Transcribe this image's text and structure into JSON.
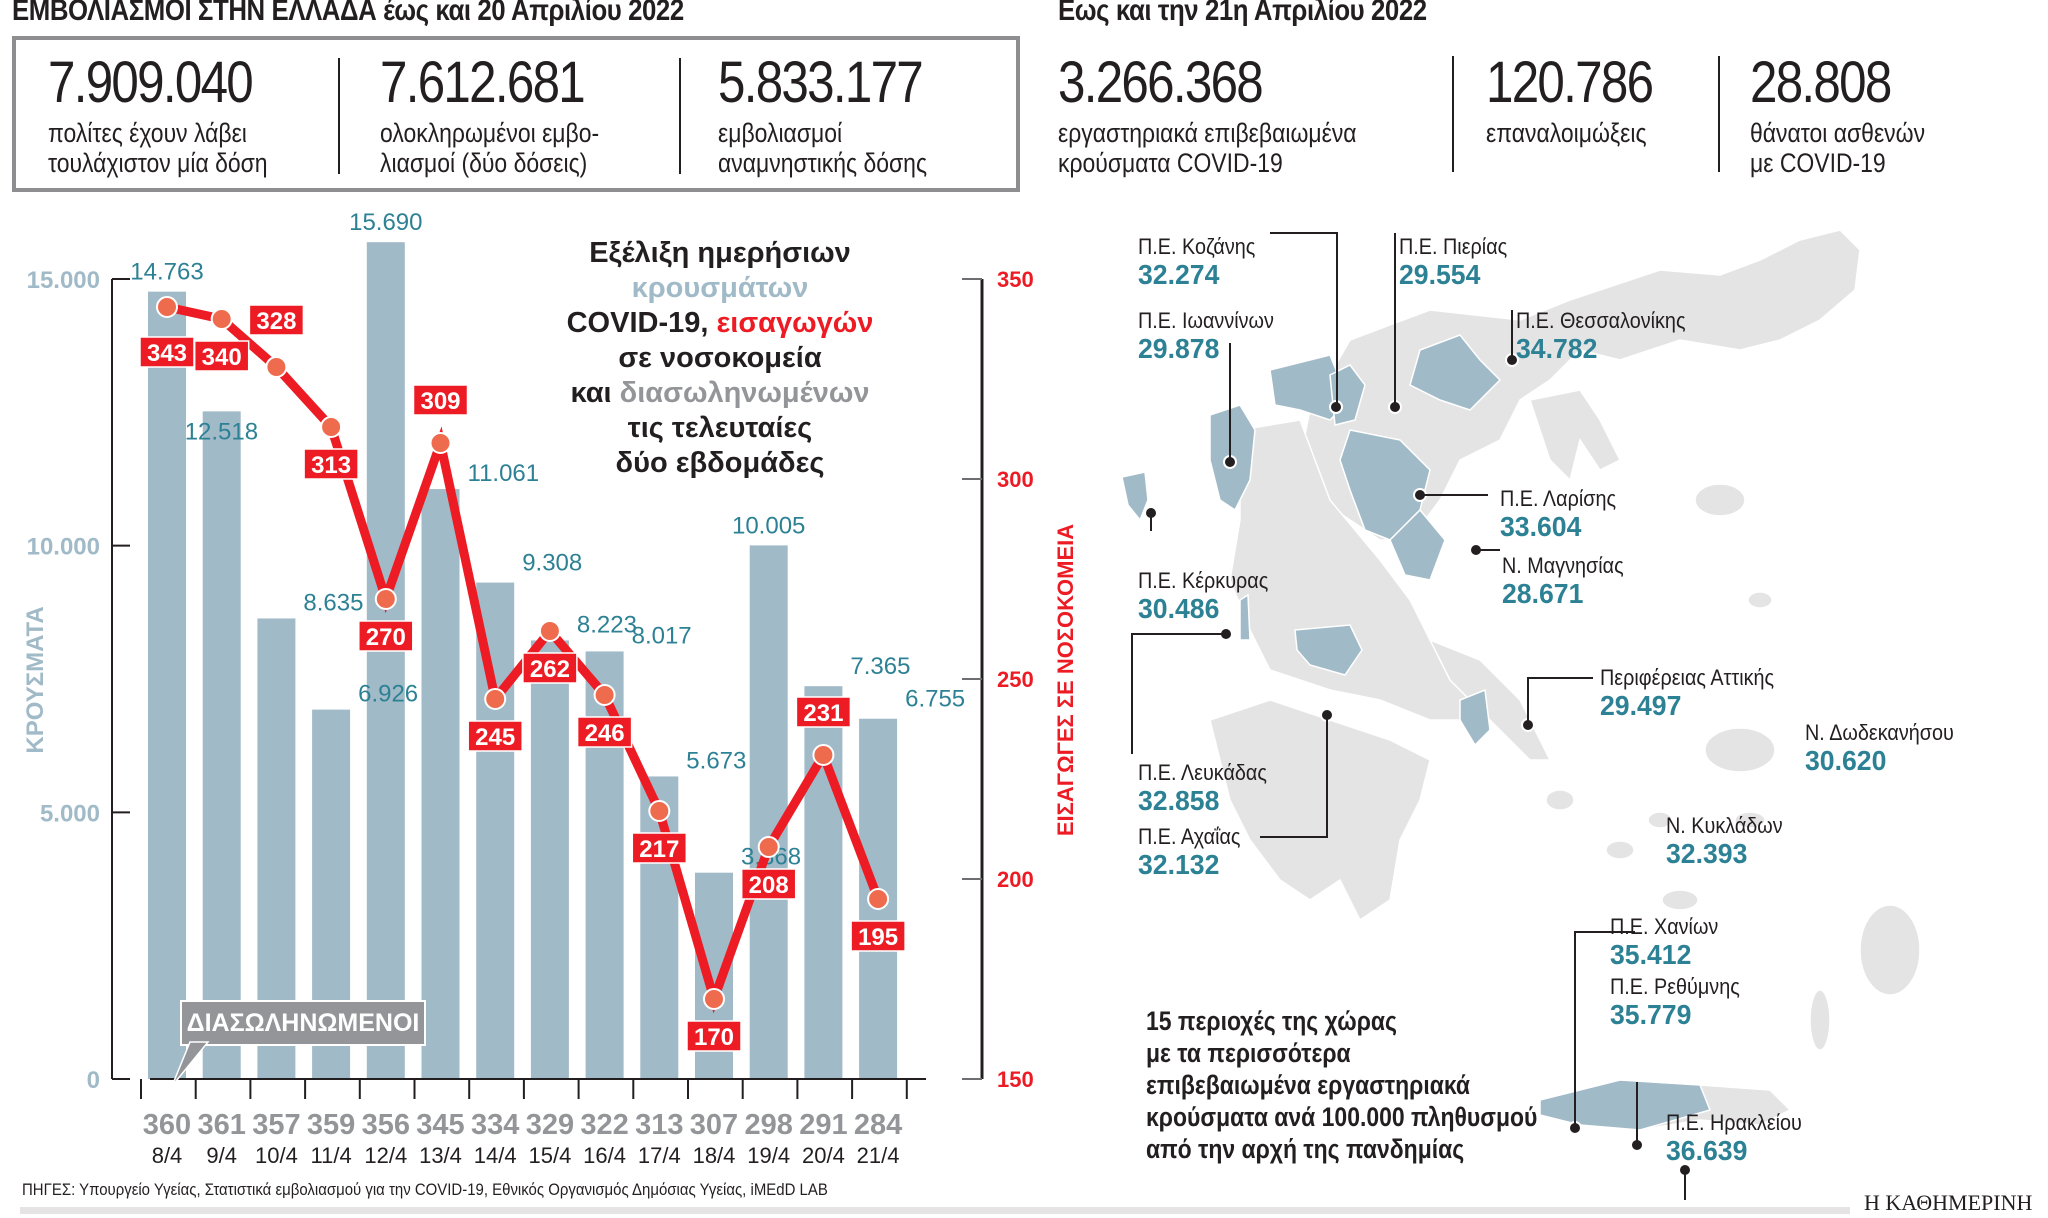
{
  "header": {
    "left_title": "ΕΜΒΟΛΙΑΣΜΟΙ ΣΤΗΝ ΕΛΛΑΔΑ",
    "left_title_suffix": "έως και 20 Απριλίου 2022",
    "right_title": "Εως και την 21η Απριλίου 2022"
  },
  "vaccination_stats": [
    {
      "value": "7.909.040",
      "label_line1": "πολίτες έχουν λάβει",
      "label_line2": "τουλάχιστον μία δόση"
    },
    {
      "value": "7.612.681",
      "label_line1": "ολοκληρωμένοι εμβο-",
      "label_line2": "λιασμοί (δύο δόσεις)"
    },
    {
      "value": "5.833.177",
      "label_line1": "εμβολιασμοί",
      "label_line2": "αναμνηστικής δόσης"
    }
  ],
  "covid_stats": [
    {
      "value": "3.266.368",
      "label_line1": "εργαστηριακά επιβεβαιωμένα",
      "label_line2": "κρούσματα COVID-19"
    },
    {
      "value": "120.786",
      "label_line1": "επαναλοιμώξεις",
      "label_line2": ""
    },
    {
      "value": "28.808",
      "label_line1": "θάνατοι ασθενών",
      "label_line2": "με COVID-19"
    }
  ],
  "chart_title": {
    "line1": "Εξέλιξη ημερήσιων",
    "line2_cases": "κρουσμάτων",
    "line3_prefix": "COVID-19,",
    "line3_admissions": "εισαγωγών",
    "line4": "σε νοσοκομεία",
    "line5_prefix": "και",
    "line5_intubated": "διασωληνωμένων",
    "line6": "τις τελευταίες",
    "line7": "δύο εβδομάδες"
  },
  "intubated_label": "ΔΙΑΣΩΛΗΝΩΜΕΝΟΙ",
  "colors": {
    "bars": "#a1bac8",
    "case_labels": "#2d8194",
    "admissions_line": "#ed1c24",
    "admissions_dot": "#ef6b4e",
    "intubated_text": "#939598",
    "left_axis_text": "#a1bac8",
    "right_axis_text": "#ed1c24"
  },
  "chart_data": {
    "type": "bar",
    "title": "Εξέλιξη ημερήσιων κρουσμάτων COVID-19, εισαγωγών σε νοσοκομεία και διασωληνωμένων τις τελευταίες δύο εβδομάδες",
    "categories": [
      "8/4",
      "9/4",
      "10/4",
      "11/4",
      "12/4",
      "13/4",
      "14/4",
      "15/4",
      "16/4",
      "17/4",
      "18/4",
      "19/4",
      "20/4",
      "21/4"
    ],
    "series": [
      {
        "name": "Κρούσματα",
        "type": "bar",
        "axis": "left",
        "values": [
          14763,
          12518,
          8635,
          6926,
          15690,
          11061,
          9308,
          8223,
          8017,
          5673,
          3868,
          10005,
          7365,
          6755
        ],
        "labels": [
          "14.763",
          "12.518",
          "8.635",
          "6.926",
          "15.690",
          "11.061",
          "9.308",
          "8.223",
          "8.017",
          "5.673",
          "3.868",
          "10.005",
          "7.365",
          "6.755"
        ]
      },
      {
        "name": "Εισαγωγές σε νοσοκομεία",
        "type": "line",
        "axis": "right",
        "values": [
          343,
          340,
          328,
          313,
          270,
          309,
          245,
          262,
          246,
          217,
          170,
          208,
          231,
          195
        ]
      },
      {
        "name": "Διασωληνωμένοι",
        "type": "table",
        "values": [
          360,
          361,
          357,
          359,
          356,
          345,
          334,
          329,
          322,
          313,
          307,
          298,
          291,
          284
        ]
      }
    ],
    "ylabel": "ΚΡΟΥΣΜΑΤΑ",
    "ylabel_right": "ΕΙΣΑΓΩΓΕΣ ΣΕ ΝΟΣΟΚΟΜΕΙΑ",
    "ylim": [
      0,
      15000
    ],
    "yticks": [
      "0",
      "5.000",
      "10.000",
      "15.000"
    ],
    "ylim_right": [
      150,
      350
    ],
    "yticks_right": [
      "150",
      "200",
      "250",
      "300",
      "350"
    ],
    "grid": false
  },
  "map": {
    "caption_lines": [
      "15 περιοχές της χώρας",
      "με τα περισσότερα",
      "επιβεβαιωμένα εργαστηριακά",
      "κρούσματα ανά 100.000 πληθυσμού",
      "από την αρχή της πανδημίας"
    ],
    "regions": [
      {
        "name": "Π.Ε. Κοζάνης",
        "value": "32.274"
      },
      {
        "name": "Π.Ε. Πιερίας",
        "value": "29.554"
      },
      {
        "name": "Π.Ε. Ιωαννίνων",
        "value": "29.878"
      },
      {
        "name": "Π.Ε. Θεσσαλονίκης",
        "value": "34.782"
      },
      {
        "name": "Π.Ε. Λαρίσης",
        "value": "33.604"
      },
      {
        "name": "Ν. Μαγνησίας",
        "value": "28.671"
      },
      {
        "name": "Π.Ε. Κέρκυρας",
        "value": "30.486"
      },
      {
        "name": "Περιφέρειας Αττικής",
        "value": "29.497"
      },
      {
        "name": "Ν. Δωδεκανήσου",
        "value": "30.620"
      },
      {
        "name": "Π.Ε. Λευκάδας",
        "value": "32.858"
      },
      {
        "name": "Π.Ε. Αχαΐας",
        "value": "32.132"
      },
      {
        "name": "Ν. Κυκλάδων",
        "value": "32.393"
      },
      {
        "name": "Π.Ε. Χανίων",
        "value": "35.412"
      },
      {
        "name": "Π.Ε. Ρεθύμνης",
        "value": "35.779"
      },
      {
        "name": "Π.Ε. Ηρακλείου",
        "value": "36.639"
      }
    ]
  },
  "footer": {
    "sources": "ΠΗΓΕΣ: Υπουργείο Υγείας, Στατιστικά εμβολιασμού για την COVID-19, Εθνικός Οργανισμός Δημόσιας Υγείας, iMEdD LAB",
    "brand": "Η ΚΑΘΗΜΕΡΙΝΗ"
  }
}
